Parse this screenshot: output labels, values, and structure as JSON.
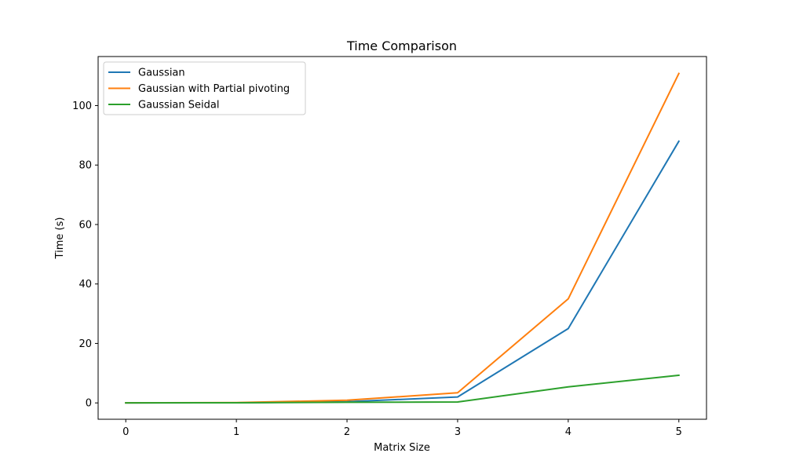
{
  "chart_data": {
    "type": "line",
    "title": "Time Comparison",
    "xlabel": "Matrix Size",
    "ylabel": "Time (s)",
    "x": [
      0,
      1,
      2,
      3,
      4,
      5
    ],
    "series": [
      {
        "name": "Gaussian",
        "color": "#1f77b4",
        "values": [
          0.01,
          0.05,
          0.4,
          2.0,
          25.0,
          88.0
        ]
      },
      {
        "name": "Gaussian with Partial pivoting",
        "color": "#ff7f0e",
        "values": [
          0.01,
          0.1,
          0.9,
          3.4,
          35.0,
          110.8
        ]
      },
      {
        "name": "Gaussian Seidal",
        "color": "#2ca02c",
        "values": [
          0.01,
          0.05,
          0.2,
          0.3,
          5.4,
          9.3
        ]
      }
    ],
    "xlim": [
      -0.25,
      5.25
    ],
    "ylim": [
      -5.5,
      116.5
    ],
    "xticks": [
      0,
      1,
      2,
      3,
      4,
      5
    ],
    "yticks": [
      0,
      20,
      40,
      60,
      80,
      100
    ],
    "grid": false,
    "legend_position": "top-left"
  }
}
